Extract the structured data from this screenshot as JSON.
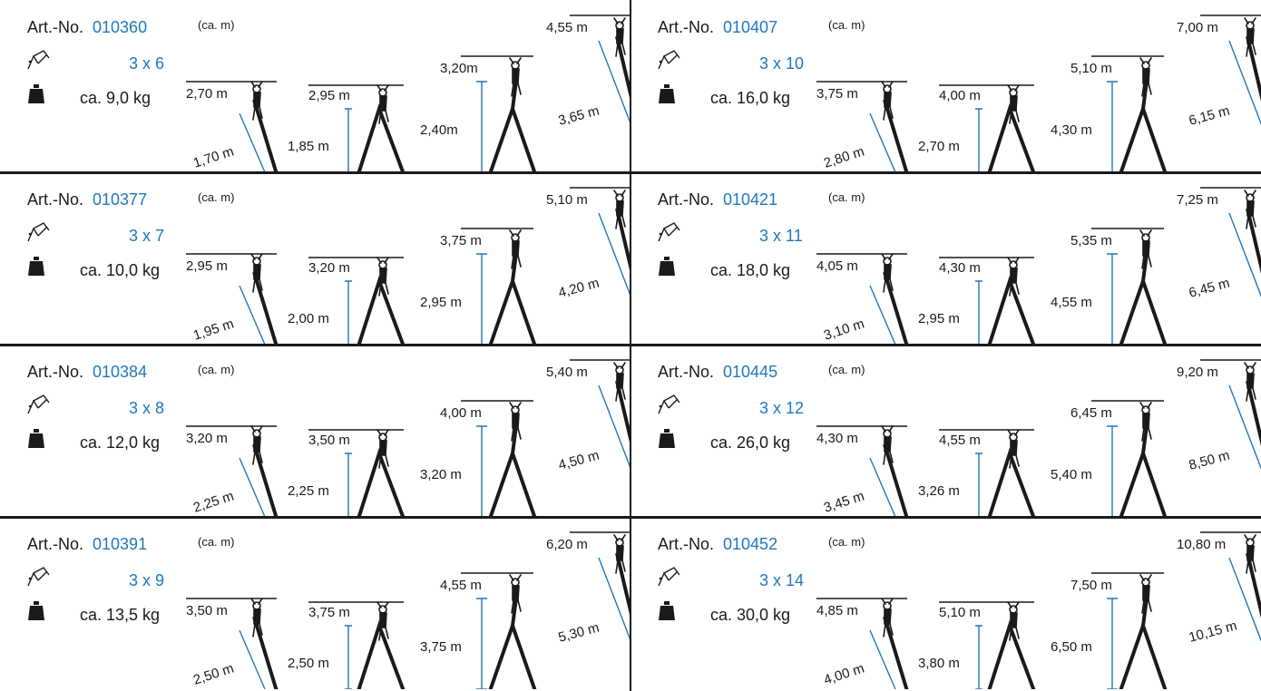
{
  "labels": {
    "art_no": "Art.-No.",
    "unit": "(ca. m)"
  },
  "icons": {
    "ladder": "ladder-icon",
    "weight": "weight-icon",
    "person": "climbing-person-icon"
  },
  "colors": {
    "accent": "#1f78bd",
    "ink": "#1a1a1a"
  },
  "products": [
    {
      "art_no": "010360",
      "size": "3 x 6",
      "weight": "ca. 9,0 kg",
      "c1_top": "2,70 m",
      "c1_len": "1,70 m",
      "c2_top": "2,95 m",
      "c2_len": "1,85 m",
      "c3_top": "3,20m",
      "c3_len": "2,40m",
      "c4_top": "4,55 m",
      "c4_len": "3,65 m"
    },
    {
      "art_no": "010407",
      "size": "3 x 10",
      "weight": "ca. 16,0 kg",
      "c1_top": "3,75 m",
      "c1_len": "2,80 m",
      "c2_top": "4,00 m",
      "c2_len": "2,70 m",
      "c3_top": "5,10 m",
      "c3_len": "4,30 m",
      "c4_top": "7,00 m",
      "c4_len": "6,15 m"
    },
    {
      "art_no": "010377",
      "size": "3 x 7",
      "weight": "ca. 10,0 kg",
      "c1_top": "2,95 m",
      "c1_len": "1,95 m",
      "c2_top": "3,20 m",
      "c2_len": "2,00 m",
      "c3_top": "3,75 m",
      "c3_len": "2,95 m",
      "c4_top": "5,10 m",
      "c4_len": "4,20 m"
    },
    {
      "art_no": "010421",
      "size": "3 x 11",
      "weight": "ca. 18,0 kg",
      "c1_top": "4,05 m",
      "c1_len": "3,10 m",
      "c2_top": "4,30 m",
      "c2_len": "2,95 m",
      "c3_top": "5,35 m",
      "c3_len": "4,55 m",
      "c4_top": "7,25 m",
      "c4_len": "6,45 m"
    },
    {
      "art_no": "010384",
      "size": "3 x 8",
      "weight": "ca. 12,0 kg",
      "c1_top": "3,20 m",
      "c1_len": "2,25 m",
      "c2_top": "3,50 m",
      "c2_len": "2,25 m",
      "c3_top": "4,00 m",
      "c3_len": "3,20 m",
      "c4_top": "5,40 m",
      "c4_len": "4,50 m"
    },
    {
      "art_no": "010445",
      "size": "3 x 12",
      "weight": "ca. 26,0 kg",
      "c1_top": "4,30 m",
      "c1_len": "3,45 m",
      "c2_top": "4,55 m",
      "c2_len": "3,26 m",
      "c3_top": "6,45 m",
      "c3_len": "5,40 m",
      "c4_top": "9,20 m",
      "c4_len": "8,50 m"
    },
    {
      "art_no": "010391",
      "size": "3 x 9",
      "weight": "ca. 13,5 kg",
      "c1_top": "3,50 m",
      "c1_len": "2,50 m",
      "c2_top": "3,75 m",
      "c2_len": "2,50 m",
      "c3_top": "4,55 m",
      "c3_len": "3,75 m",
      "c4_top": "6,20 m",
      "c4_len": "5,30 m"
    },
    {
      "art_no": "010452",
      "size": "3 x 14",
      "weight": "ca. 30,0 kg",
      "c1_top": "4,85 m",
      "c1_len": "4,00 m",
      "c2_top": "5,10 m",
      "c2_len": "3,80 m",
      "c3_top": "7,50 m",
      "c3_len": "6,50 m",
      "c4_top": "10,80 m",
      "c4_len": "10,15 m"
    }
  ]
}
